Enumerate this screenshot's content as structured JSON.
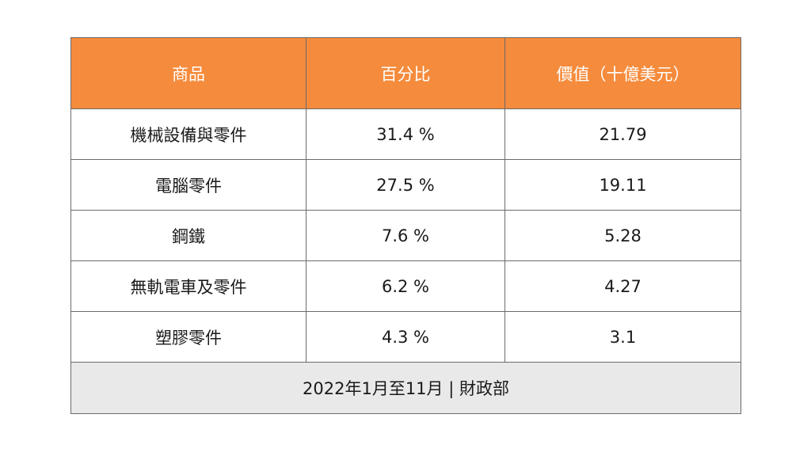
{
  "chart_data": {
    "type": "table",
    "headers": [
      "商品",
      "百分比",
      "價值（十億美元）"
    ],
    "rows": [
      [
        "機械設備與零件",
        "31.4 %",
        "21.79"
      ],
      [
        "電腦零件",
        "27.5 %",
        "19.11"
      ],
      [
        "鋼鐵",
        "7.6 %",
        "5.28"
      ],
      [
        "無軌電車及零件",
        "6.2 %",
        "4.27"
      ],
      [
        "塑膠零件",
        "4.3 %",
        "3.1"
      ]
    ],
    "footer": "2022年1月至11月 | 財政部",
    "colors": {
      "header_bg": "#f58b3c",
      "header_text": "#ffffff",
      "footer_bg": "#e9e9e9",
      "border": "#6b6b6b"
    }
  }
}
